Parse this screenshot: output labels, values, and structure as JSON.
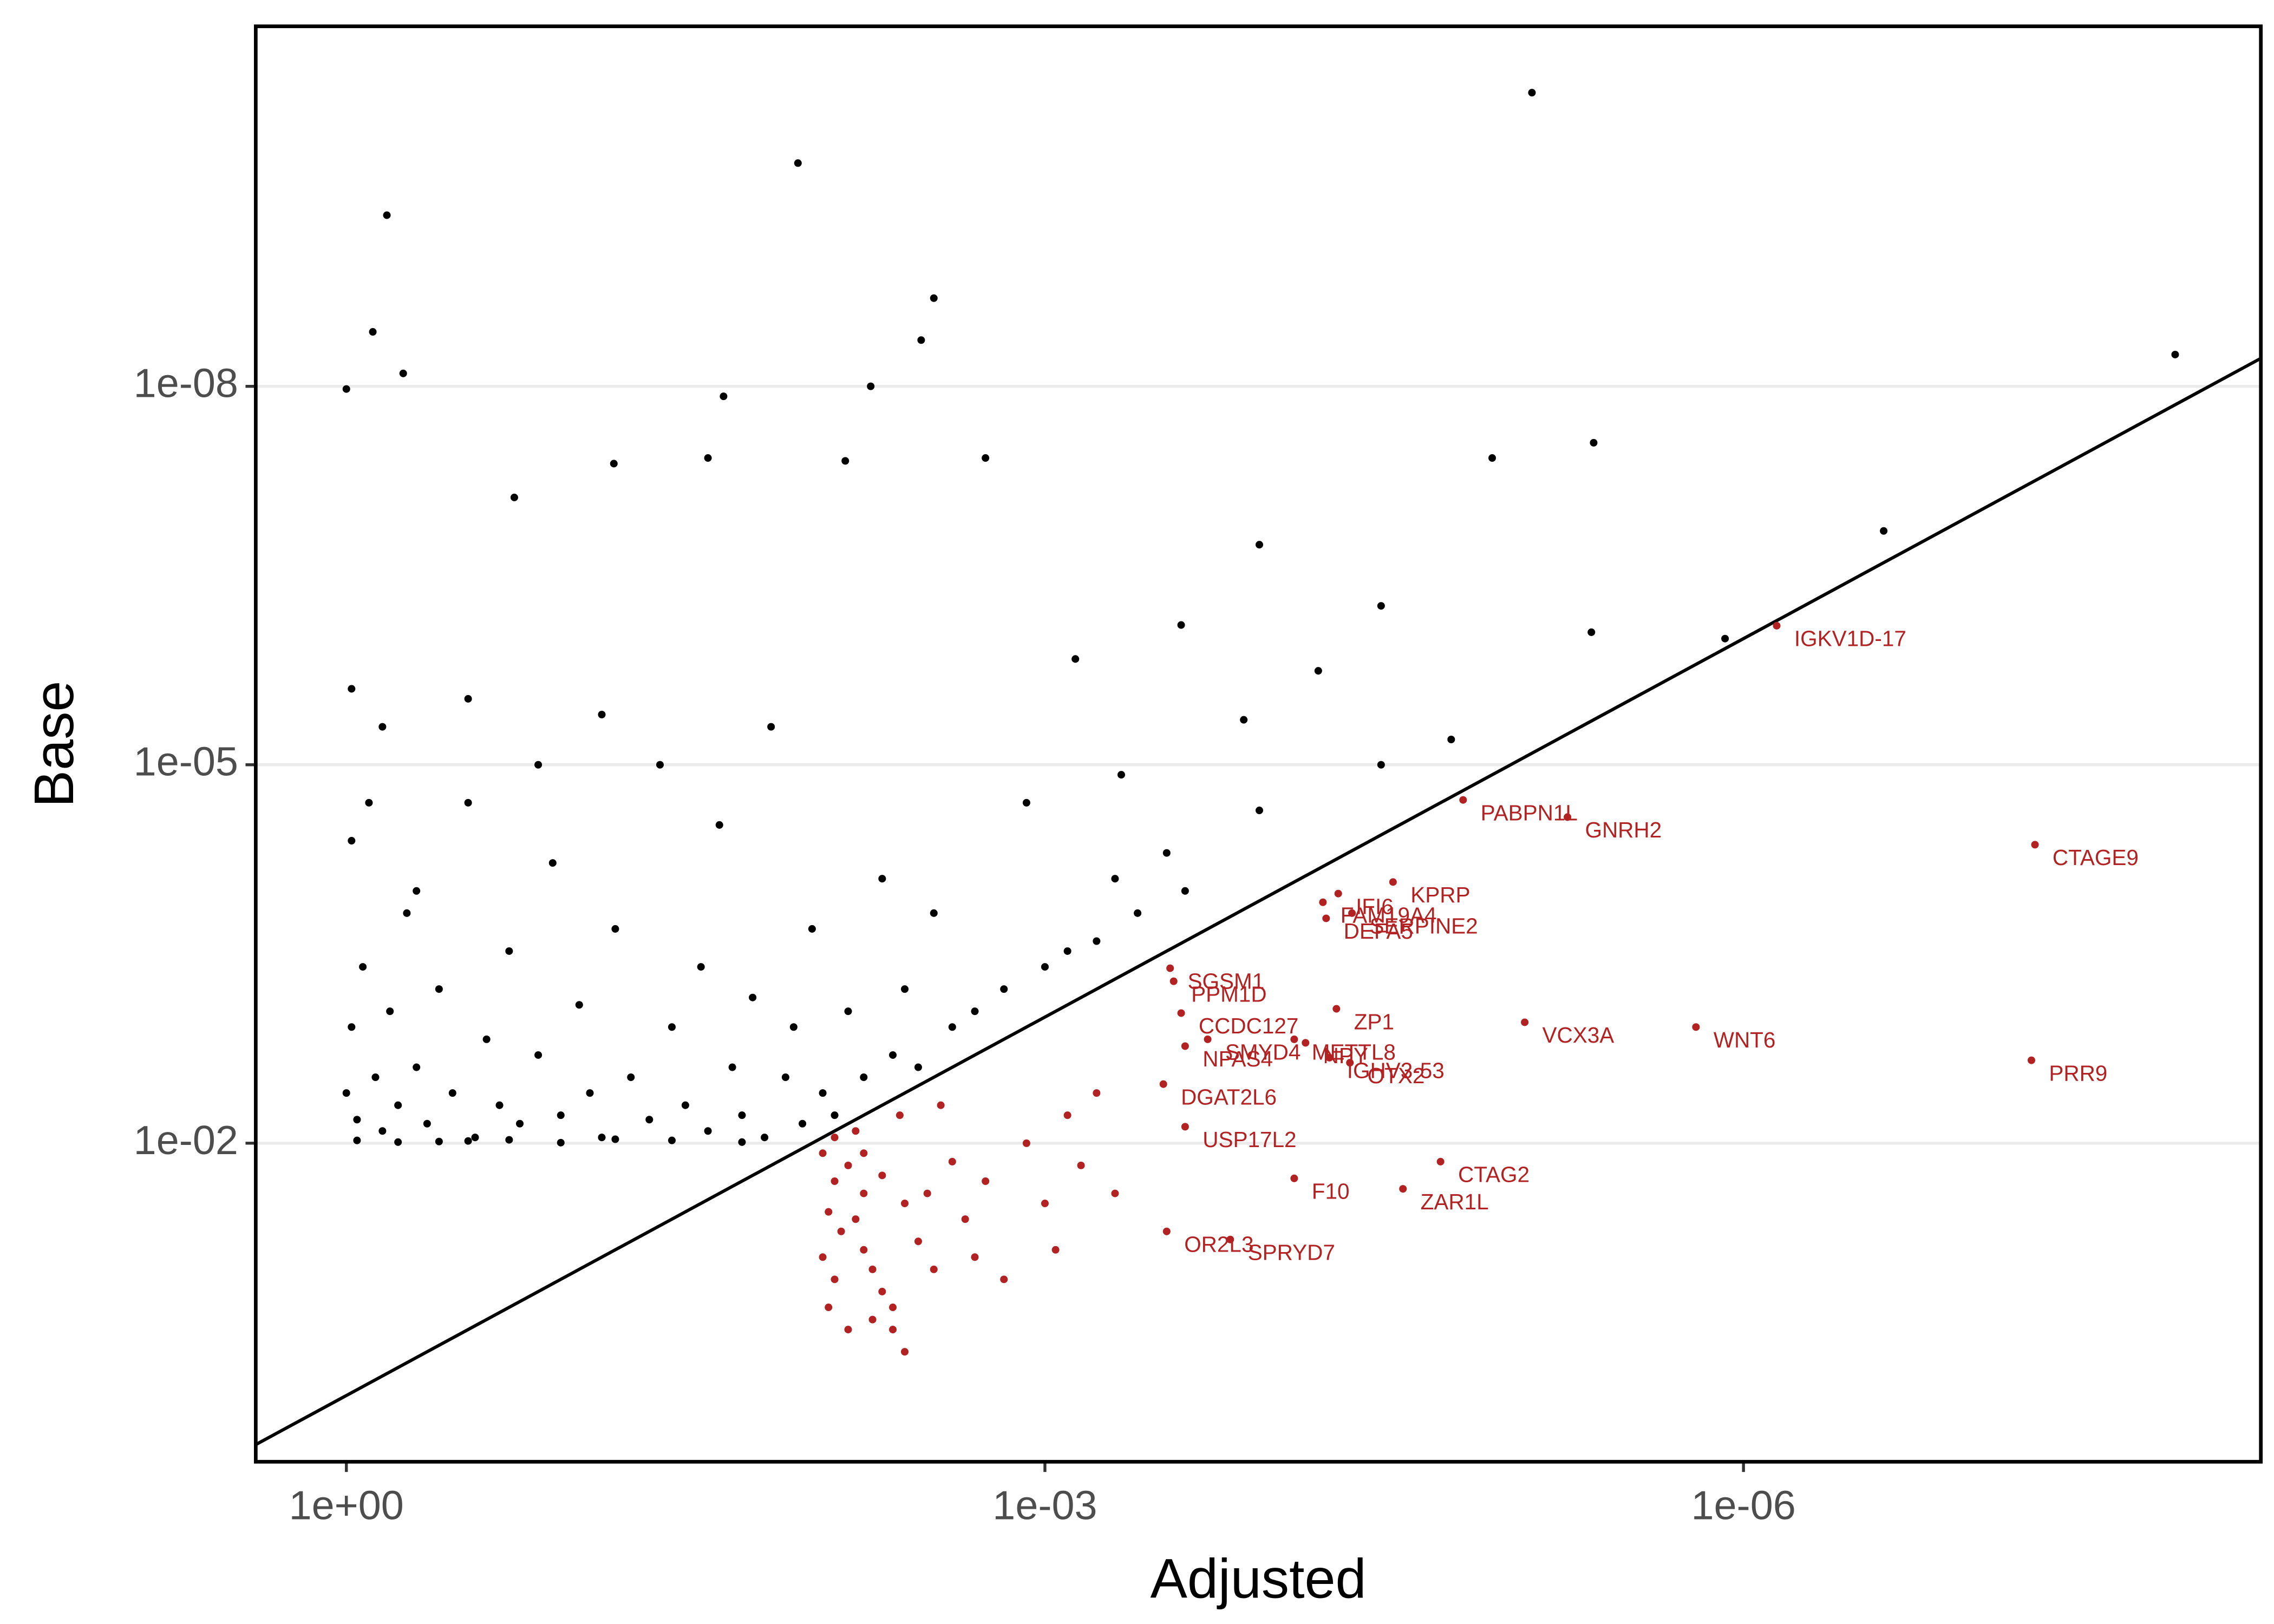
{
  "chart_data": {
    "type": "scatter",
    "xlabel": "Adjusted",
    "ylabel": "Base",
    "xlog": true,
    "ylog": true,
    "grid_y": true,
    "identity_line": true,
    "xlim": [
      2.45,
      6e-09
    ],
    "ylim": [
      3.35,
      1.4e-11
    ],
    "xticks": [
      {
        "value": 1,
        "label": "1e+00"
      },
      {
        "value": 0.001,
        "label": "1e-03"
      },
      {
        "value": 1e-06,
        "label": "1e-06"
      }
    ],
    "yticks": [
      {
        "value": 1e-08,
        "label": "1e-08"
      },
      {
        "value": 1e-05,
        "label": "1e-05"
      },
      {
        "value": 0.01,
        "label": "1e-02"
      }
    ],
    "series": [
      {
        "color": "#000000",
        "x": [
          8.1e-06,
          0.0115,
          0.67,
          0.77,
          0.003,
          0.0034,
          1.4e-08,
          1,
          0.57,
          0.0056,
          0.024,
          4.4e-06,
          1.2e-05,
          0.0018,
          0.071,
          0.0072,
          0.028,
          0.19,
          2.5e-07,
          0.00012,
          3.6e-05,
          4.5e-06,
          1.2e-06,
          0.00026,
          1.8e-05,
          3.6e-05,
          0.00047,
          0.00014,
          6.7e-05,
          0.00012,
          0.00074,
          1,
          0.9,
          0.95,
          0.85,
          0.8,
          0.75,
          0.7,
          0.65,
          0.6,
          0.55,
          0.5,
          0.45,
          0.4,
          0.35,
          0.3,
          0.28,
          0.25,
          0.22,
          0.2,
          0.18,
          0.15,
          0.13,
          0.12,
          0.1,
          0.09,
          0.08,
          0.07,
          0.06,
          0.05,
          0.045,
          0.04,
          0.035,
          0.03,
          0.028,
          0.025,
          0.022,
          0.02,
          0.018,
          0.016,
          0.015,
          0.013,
          0.012,
          0.011,
          0.01,
          0.009,
          0.008,
          0.007,
          0.006,
          0.005,
          0.0045,
          0.004,
          0.0035,
          0.003,
          0.0025,
          0.002,
          0.0015,
          0.0012,
          0.001,
          0.0008,
          0.0006,
          0.0005,
          0.0004,
          0.0003,
          0.00025,
          0.9,
          0.6,
          0.4,
          0.3,
          0.2,
          0.12,
          0.07,
          0.04,
          0.02,
          0.5,
          0.15,
          0.08,
          0.3,
          0.7,
          0.95,
          0.95
        ],
        "y": [
          4.7e-11,
          1.7e-10,
          4.4e-10,
          3.7e-09,
          2e-09,
          4.3e-09,
          5.6e-09,
          1.05e-08,
          7.9e-09,
          1e-08,
          1.2e-08,
          2.8e-08,
          3.7e-08,
          3.7e-08,
          4.1e-08,
          3.9e-08,
          3.7e-08,
          7.6e-08,
          1.4e-07,
          1.8e-07,
          5.5e-07,
          8.9e-07,
          1e-06,
          7.8e-07,
          6.3e-06,
          1e-05,
          1.2e-05,
          4.4e-06,
          1.8e-06,
          2.3e-05,
          1.45e-06,
          0.004,
          0.0065,
          0.0012,
          0.0004,
          2e-05,
          0.003,
          0.008,
          0.0009,
          0.005,
          0.00015,
          0.0025,
          0.007,
          0.0006,
          0.004,
          3e-06,
          0.009,
          0.0015,
          0.005,
          0.0003,
          0.007,
          0.002,
          6e-05,
          0.006,
          0.0008,
          0.004,
          0.009,
          0.0002,
          0.003,
          0.0065,
          1e-05,
          0.0012,
          0.005,
          0.0004,
          0.008,
          3e-05,
          0.0025,
          0.006,
          0.0007,
          0.009,
          5e-06,
          0.003,
          0.0012,
          0.007,
          0.0002,
          0.004,
          0.006,
          0.0009,
          0.003,
          8e-05,
          0.002,
          0.0006,
          0.0025,
          0.00015,
          0.0012,
          0.0009,
          0.0006,
          2e-05,
          0.0004,
          0.0003,
          0.00025,
          8e-05,
          0.00015,
          5e-05,
          0.0001,
          0.0095,
          0.0098,
          0.0097,
          0.0096,
          0.0094,
          0.0099,
          0.0093,
          0.0095,
          0.0098,
          0.0001,
          1e-05,
          4e-06,
          2e-05,
          5e-06,
          4e-05,
          2.5e-06
        ]
      },
      {
        "color": "#b22222",
        "x": [
          0.009,
          0.008,
          0.0085,
          0.0075,
          0.009,
          0.008,
          0.0085,
          0.007,
          0.006,
          0.0065,
          0.006,
          0.0055,
          0.005,
          0.0045,
          0.004,
          0.0045,
          0.005,
          0.004,
          0.0035,
          0.003,
          0.0032,
          0.0025,
          0.0022,
          0.002,
          0.0018,
          0.0015,
          0.0012,
          0.001,
          0.0009,
          0.0008,
          0.0007,
          0.0006,
          0.0005,
          0.006,
          0.007,
          0.0055,
          0.008,
          0.0065,
          0.0042,
          0.0028
        ],
        "y": [
          0.012,
          0.02,
          0.035,
          0.05,
          0.08,
          0.12,
          0.2,
          0.015,
          0.025,
          0.04,
          0.07,
          0.1,
          0.15,
          0.3,
          0.45,
          0.2,
          0.018,
          0.03,
          0.06,
          0.1,
          0.025,
          0.014,
          0.04,
          0.08,
          0.02,
          0.12,
          0.01,
          0.03,
          0.07,
          0.006,
          0.015,
          0.004,
          0.025,
          0.012,
          0.3,
          0.25,
          0.009,
          0.008,
          0.006,
          0.005
        ]
      },
      {
        "color": "#b22222",
        "labels": [
          "IGKV1D-17",
          "PABPN1L",
          "GNRH2",
          "CTAGE9",
          "KPRP",
          "IFI6",
          "FAM19A4",
          "SERPINE2",
          "DEFA5",
          "SGSM1",
          "PPM1D",
          "ZP1",
          "VCX3A",
          "WNT6",
          "CCDC127",
          "SMYD4",
          "NPAS4",
          "METTL8",
          "NPY",
          "IGHV3-53",
          "OTX2",
          "PRR9",
          "DGAT2L6",
          "USP17L2",
          "CTAG2",
          "F10",
          "ZAR1L",
          "OR2L3",
          "SPRYD7"
        ],
        "x": [
          7.2e-07,
          1.6e-05,
          5.7e-06,
          5.6e-08,
          3.2e-05,
          5.5e-05,
          6.4e-05,
          4.8e-05,
          6.2e-05,
          0.00029,
          0.00028,
          5.6e-05,
          8.7e-06,
          1.6e-06,
          0.00026,
          0.0002,
          0.00025,
          8.5e-05,
          7.6e-05,
          6e-05,
          4.9e-05,
          5.8e-08,
          0.00031,
          0.00025,
          2e-05,
          8.5e-05,
          2.9e-05,
          0.0003,
          0.00016
        ],
        "y": [
          7.9e-07,
          1.9e-05,
          2.6e-05,
          4.3e-05,
          8.5e-05,
          0.000105,
          0.000123,
          0.00015,
          0.000165,
          0.00041,
          0.00052,
          0.00086,
          0.0011,
          0.0012,
          0.00093,
          0.0015,
          0.0017,
          0.0015,
          0.0016,
          0.0021,
          0.0023,
          0.0022,
          0.0034,
          0.0074,
          0.014,
          0.019,
          0.023,
          0.05,
          0.058
        ]
      }
    ]
  }
}
